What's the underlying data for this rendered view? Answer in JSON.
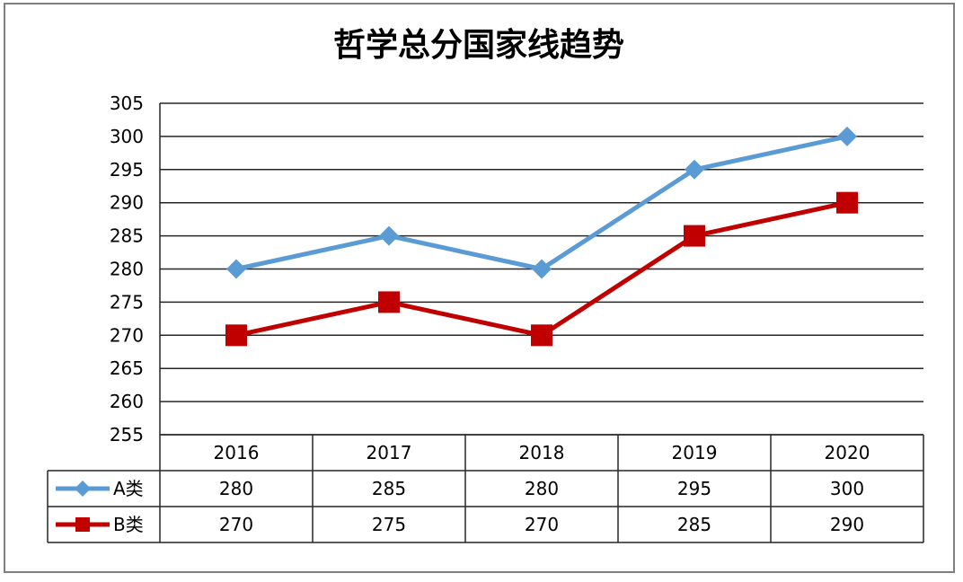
{
  "chart_data": {
    "type": "line",
    "title": "哲学总分国家线趋势",
    "xlabel": "",
    "ylabel": "",
    "categories": [
      "2016",
      "2017",
      "2018",
      "2019",
      "2020"
    ],
    "ylim": [
      255,
      305
    ],
    "yticks": [
      "305",
      "300",
      "295",
      "290",
      "285",
      "280",
      "275",
      "270",
      "265",
      "260",
      "255"
    ],
    "grid": true,
    "legend_position": "data table",
    "series": [
      {
        "name": "A类",
        "color": "#5b9bd5",
        "marker": "diamond",
        "values": [
          280,
          285,
          280,
          295,
          300
        ],
        "labels": [
          "280",
          "285",
          "280",
          "295",
          "300"
        ]
      },
      {
        "name": "B类",
        "color": "#c00000",
        "marker": "square",
        "values": [
          270,
          275,
          270,
          285,
          290
        ],
        "labels": [
          "270",
          "275",
          "270",
          "285",
          "290"
        ]
      }
    ]
  }
}
